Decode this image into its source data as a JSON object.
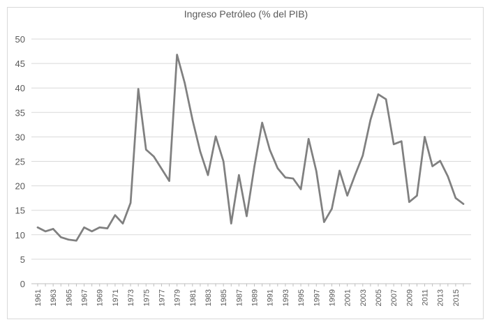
{
  "chart_data": {
    "type": "line",
    "title": "Ingreso Petróleo (% del PIB)",
    "xlabel": "",
    "ylabel": "",
    "ylim": [
      0,
      50
    ],
    "yticks": [
      0,
      5,
      10,
      15,
      20,
      25,
      30,
      35,
      40,
      45,
      50
    ],
    "grid": true,
    "legend": "none",
    "line_color": "#808080",
    "x": [
      1961,
      1962,
      1963,
      1964,
      1965,
      1966,
      1967,
      1968,
      1969,
      1970,
      1971,
      1972,
      1973,
      1974,
      1975,
      1976,
      1977,
      1978,
      1979,
      1980,
      1981,
      1982,
      1983,
      1984,
      1985,
      1986,
      1987,
      1988,
      1989,
      1990,
      1991,
      1992,
      1993,
      1994,
      1995,
      1996,
      1997,
      1998,
      1999,
      2000,
      2001,
      2002,
      2003,
      2004,
      2005,
      2006,
      2007,
      2008,
      2009,
      2010,
      2011,
      2012,
      2013,
      2014,
      2015,
      2016
    ],
    "xtick_labels": [
      "1961",
      "1963",
      "1965",
      "1967",
      "1969",
      "1971",
      "1973",
      "1975",
      "1977",
      "1979",
      "1981",
      "1983",
      "1985",
      "1987",
      "1989",
      "1991",
      "1993",
      "1995",
      "1997",
      "1999",
      "2001",
      "2003",
      "2005",
      "2007",
      "2009",
      "2011",
      "2013",
      "2015"
    ],
    "series": [
      {
        "name": "",
        "values": [
          11.5,
          10.7,
          11.2,
          9.5,
          9.0,
          8.8,
          11.5,
          10.7,
          11.5,
          11.3,
          14.0,
          12.3,
          16.5,
          39.8,
          27.4,
          26.0,
          23.5,
          21.0,
          46.8,
          41.0,
          33.5,
          27.0,
          22.2,
          30.1,
          25.0,
          12.3,
          22.2,
          13.8,
          24.0,
          32.9,
          27.3,
          23.6,
          21.7,
          21.5,
          19.3,
          29.6,
          23.0,
          12.6,
          15.3,
          23.1,
          18.0,
          22.2,
          26.2,
          33.5,
          38.7,
          37.7,
          28.5,
          29.1,
          16.7,
          18.0,
          30.0,
          24.0,
          25.1,
          21.9,
          17.5,
          16.3
        ]
      }
    ]
  }
}
